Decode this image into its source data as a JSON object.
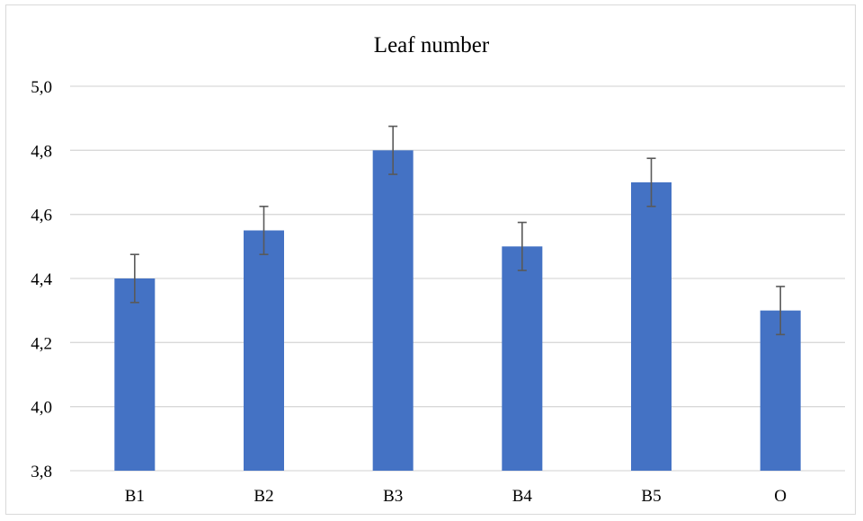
{
  "chart_data": {
    "type": "bar",
    "title": "Leaf number",
    "categories": [
      "B1",
      "B2",
      "B3",
      "B4",
      "B5",
      "O"
    ],
    "values": [
      4.4,
      4.55,
      4.8,
      4.5,
      4.7,
      4.3
    ],
    "error": [
      0.075,
      0.075,
      0.075,
      0.075,
      0.075,
      0.075
    ],
    "ylim": [
      3.8,
      5.0
    ],
    "yticks": [
      "3,8",
      "4,0",
      "4,2",
      "4,4",
      "4,6",
      "4,8",
      "5,0"
    ],
    "ytick_values": [
      3.8,
      4.0,
      4.2,
      4.4,
      4.6,
      4.8,
      5.0
    ],
    "grid": true,
    "legend": "none",
    "bar_color": "#4472c4",
    "error_color": "#595959",
    "grid_color": "#d9d9d9"
  }
}
